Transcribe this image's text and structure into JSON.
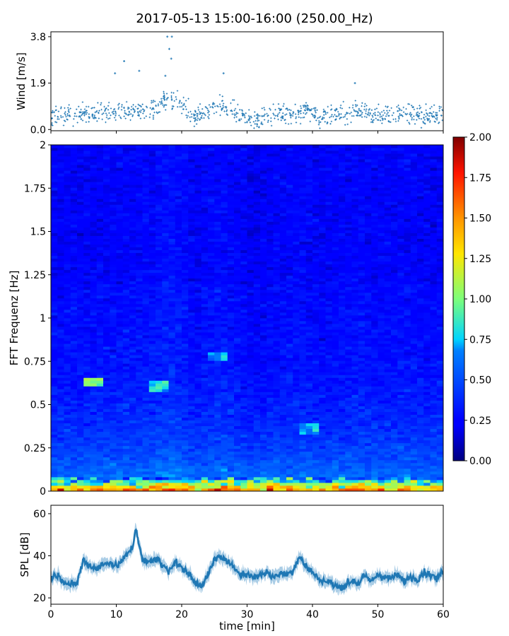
{
  "title": "2017-05-13 15:00-16:00 (250.00_Hz)",
  "colors": {
    "scatter": "#1f77b4",
    "spl_fill": "#aacde6",
    "spl_line": "#1f77b4",
    "colormap": "jet"
  },
  "chart_data": [
    {
      "id": "wind",
      "type": "scatter",
      "ylabel": "Wind [m/s]",
      "xlim": [
        0,
        60
      ],
      "ylim": [
        -0.05,
        4.0
      ],
      "yticks": [
        0.0,
        1.9,
        3.8
      ],
      "ytick_labels": [
        "0.0",
        "1.9",
        "3.8"
      ],
      "baseline_segments": [
        {
          "x": [
            0,
            5,
            10,
            15,
            17,
            19,
            22,
            26,
            29,
            31,
            33,
            37,
            39,
            41,
            45,
            47,
            50,
            55,
            58,
            60
          ],
          "y": [
            0.6,
            0.6,
            0.7,
            0.8,
            1.1,
            1.2,
            0.5,
            1.0,
            0.6,
            0.3,
            0.6,
            0.7,
            0.8,
            0.5,
            0.7,
            0.8,
            0.6,
            0.7,
            0.5,
            0.6
          ]
        }
      ],
      "spikes": [
        {
          "x": 9.8,
          "y": 2.3
        },
        {
          "x": 11.2,
          "y": 2.8
        },
        {
          "x": 13.5,
          "y": 2.4
        },
        {
          "x": 17.8,
          "y": 3.8
        },
        {
          "x": 18.5,
          "y": 3.8
        },
        {
          "x": 18.1,
          "y": 3.3
        },
        {
          "x": 18.4,
          "y": 2.9
        },
        {
          "x": 17.5,
          "y": 2.2
        },
        {
          "x": 26.4,
          "y": 2.3
        },
        {
          "x": 46.5,
          "y": 1.9
        }
      ]
    },
    {
      "id": "spectrogram",
      "type": "heatmap",
      "ylabel": "FFT Frequenz [Hz]",
      "xlim": [
        0,
        60
      ],
      "ylim": [
        0,
        2
      ],
      "yticks": [
        0,
        0.25,
        0.5,
        0.75,
        1,
        1.25,
        1.5,
        1.75,
        2
      ],
      "ytick_labels": [
        "0",
        "0.25",
        "0.5",
        "0.75",
        "1",
        "1.25",
        "1.5",
        "1.75",
        "2"
      ],
      "colorbar": {
        "range": [
          0,
          2
        ],
        "ticks": [
          0.0,
          0.25,
          0.5,
          0.75,
          1.0,
          1.25,
          1.5,
          1.75,
          2.0
        ],
        "tick_labels": [
          "0.00",
          "0.25",
          "0.50",
          "0.75",
          "1.00",
          "1.25",
          "1.50",
          "1.75",
          "2.00"
        ]
      },
      "notable_bands": [
        {
          "x_range": [
            5,
            8
          ],
          "freq": 0.63,
          "value": 1.0
        },
        {
          "x_range": [
            15,
            18
          ],
          "freq": 0.61,
          "value": 0.8
        },
        {
          "x_range": [
            24,
            27
          ],
          "freq": 0.78,
          "value": 0.7
        },
        {
          "x_range": [
            38,
            41
          ],
          "freq": 0.36,
          "value": 0.7
        }
      ],
      "low_freq_high_energy": {
        "freq_max": 0.05,
        "value": 2.0
      }
    },
    {
      "id": "spl",
      "type": "line",
      "ylabel": "SPL [dB]",
      "xlabel": "time [min]",
      "xlim": [
        0,
        60
      ],
      "ylim": [
        17,
        64
      ],
      "yticks": [
        20,
        40,
        60
      ],
      "ytick_labels": [
        "20",
        "40",
        "60"
      ],
      "xticks": [
        0,
        10,
        20,
        30,
        40,
        50,
        60
      ],
      "xtick_labels": [
        "0",
        "10",
        "20",
        "30",
        "40",
        "50",
        "60"
      ],
      "x": [
        0,
        1,
        2,
        3,
        4,
        5,
        6,
        7,
        8,
        9,
        10,
        11,
        12,
        12.5,
        13,
        13.5,
        14,
        15,
        16,
        17,
        18,
        19,
        20,
        21,
        22,
        23,
        24,
        25,
        26,
        27,
        28,
        29,
        30,
        31,
        32,
        33,
        34,
        35,
        36,
        37,
        38,
        39,
        40,
        41,
        42,
        43,
        44,
        45,
        46,
        47,
        48,
        49,
        50,
        51,
        52,
        53,
        54,
        55,
        56,
        57,
        58,
        59,
        60
      ],
      "y": [
        30,
        31,
        28,
        26,
        27,
        38,
        35,
        34,
        36,
        37,
        35,
        38,
        42,
        44,
        54,
        45,
        38,
        37,
        39,
        36,
        33,
        37,
        34,
        32,
        27,
        26,
        31,
        38,
        40,
        37,
        34,
        32,
        31,
        30,
        31,
        32,
        30,
        32,
        31,
        33,
        40,
        35,
        32,
        29,
        28,
        27,
        25,
        26,
        28,
        27,
        30,
        28,
        31,
        30,
        29,
        31,
        28,
        30,
        29,
        32,
        31,
        29,
        33
      ],
      "band": 2.5
    }
  ]
}
